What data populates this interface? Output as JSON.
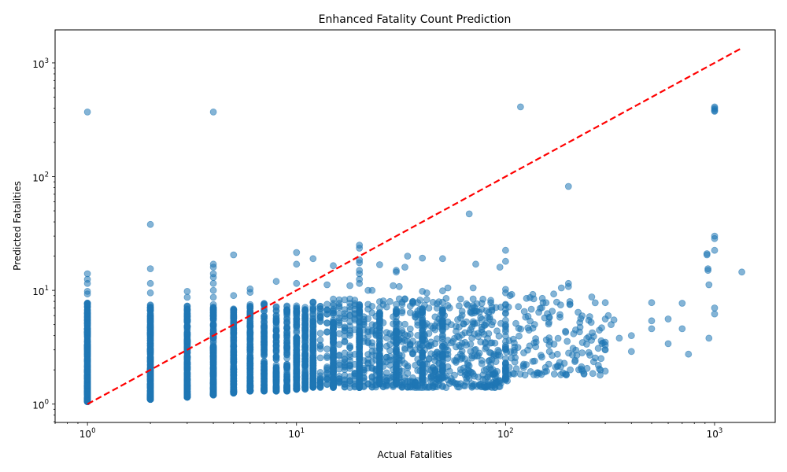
{
  "chart_data": {
    "type": "scatter",
    "title": "Enhanced Fatality Count Prediction",
    "xlabel": "Actual Fatalities",
    "ylabel": "Predicted Fatalities",
    "x_scale": "log",
    "y_scale": "log",
    "xlim": [
      0.7,
      1950
    ],
    "ylim": [
      0.69,
      1950
    ],
    "x_ticks": [
      {
        "value": 1,
        "base": "10",
        "exp": "0"
      },
      {
        "value": 10,
        "base": "10",
        "exp": "1"
      },
      {
        "value": 100,
        "base": "10",
        "exp": "2"
      },
      {
        "value": 1000,
        "base": "10",
        "exp": "3"
      }
    ],
    "y_ticks": [
      {
        "value": 1,
        "base": "10",
        "exp": "0"
      },
      {
        "value": 10,
        "base": "10",
        "exp": "1"
      },
      {
        "value": 100,
        "base": "10",
        "exp": "2"
      },
      {
        "value": 1000,
        "base": "10",
        "exp": "3"
      }
    ],
    "grid": false,
    "point_color": "#1f77b4",
    "point_alpha": 0.55,
    "reference_line": {
      "x": [
        1,
        1350
      ],
      "y": [
        1,
        1350
      ],
      "color": "#ff0000",
      "style": "dashed"
    },
    "bands": [
      {
        "x": 1,
        "ymin": 1.05,
        "ymax": 7.8,
        "n": 300
      },
      {
        "x": 2,
        "ymin": 1.1,
        "ymax": 7.5,
        "n": 260
      },
      {
        "x": 3,
        "ymin": 1.15,
        "ymax": 7.5,
        "n": 240
      },
      {
        "x": 4,
        "ymin": 1.2,
        "ymax": 7.6,
        "n": 200
      },
      {
        "x": 5,
        "ymin": 1.25,
        "ymax": 7.5,
        "n": 170
      },
      {
        "x": 6,
        "ymin": 1.3,
        "ymax": 7.6,
        "n": 150
      },
      {
        "x": 7,
        "ymin": 1.3,
        "ymax": 7.7,
        "n": 130
      },
      {
        "x": 8,
        "ymin": 1.3,
        "ymax": 7.5,
        "n": 110
      },
      {
        "x": 9,
        "ymin": 1.3,
        "ymax": 7.4,
        "n": 100
      },
      {
        "x": 10,
        "ymin": 1.35,
        "ymax": 7.6,
        "n": 130
      },
      {
        "x": 11,
        "ymin": 1.35,
        "ymax": 7.2,
        "n": 80
      },
      {
        "x": 12,
        "ymin": 1.4,
        "ymax": 7.0,
        "n": 90
      },
      {
        "x": 15,
        "ymin": 1.4,
        "ymax": 7.0,
        "n": 100
      },
      {
        "x": 20,
        "ymin": 1.4,
        "ymax": 7.5,
        "n": 110
      },
      {
        "x": 25,
        "ymin": 1.5,
        "ymax": 7.0,
        "n": 80
      },
      {
        "x": 30,
        "ymin": 1.5,
        "ymax": 7.0,
        "n": 80
      },
      {
        "x": 40,
        "ymin": 1.6,
        "ymax": 7.0,
        "n": 70
      },
      {
        "x": 50,
        "ymin": 1.7,
        "ymax": 7.0,
        "n": 60
      },
      {
        "x": 100,
        "ymin": 1.6,
        "ymax": 8.0,
        "n": 40
      }
    ],
    "cloud": {
      "xmin": 10,
      "xmax": 95,
      "ymin": 1.4,
      "ymax": 8.5,
      "n": 900
    },
    "sparse_cloud": {
      "xmin": 100,
      "xmax": 300,
      "ymin": 1.8,
      "ymax": 9.0,
      "n": 160
    },
    "outliers": [
      [
        1,
        370
      ],
      [
        4,
        370
      ],
      [
        118,
        410
      ],
      [
        2,
        38
      ],
      [
        1,
        14
      ],
      [
        1,
        12.5
      ],
      [
        1,
        11.5
      ],
      [
        1,
        9.8
      ],
      [
        1,
        9.3
      ],
      [
        2,
        15.5
      ],
      [
        2,
        11.5
      ],
      [
        2,
        9.5
      ],
      [
        3,
        9.8
      ],
      [
        3,
        8.7
      ],
      [
        4,
        17
      ],
      [
        4,
        16
      ],
      [
        4,
        14
      ],
      [
        4,
        13
      ],
      [
        4,
        11.5
      ],
      [
        4,
        10
      ],
      [
        4,
        8.7
      ],
      [
        5,
        20.5
      ],
      [
        5,
        9
      ],
      [
        6,
        10.3
      ],
      [
        6,
        9.6
      ],
      [
        8,
        12
      ],
      [
        10,
        21.5
      ],
      [
        10,
        17
      ],
      [
        10,
        11.5
      ],
      [
        12,
        19
      ],
      [
        14,
        11.2
      ],
      [
        15,
        16.5
      ],
      [
        18,
        11
      ],
      [
        20,
        25
      ],
      [
        20,
        23.5
      ],
      [
        20,
        18.5
      ],
      [
        20,
        17.5
      ],
      [
        20,
        15
      ],
      [
        20,
        14
      ],
      [
        20,
        12.5
      ],
      [
        20,
        11.5
      ],
      [
        22,
        10
      ],
      [
        23,
        10
      ],
      [
        25,
        16.8
      ],
      [
        29,
        11
      ],
      [
        30,
        15
      ],
      [
        30,
        14.5
      ],
      [
        31,
        10.8
      ],
      [
        33,
        16
      ],
      [
        34,
        20
      ],
      [
        40,
        19.2
      ],
      [
        40,
        9.8
      ],
      [
        42,
        9.5
      ],
      [
        50,
        19
      ],
      [
        50,
        9.9
      ],
      [
        53,
        10.5
      ],
      [
        67,
        47
      ],
      [
        70,
        10.5
      ],
      [
        72,
        17
      ],
      [
        94,
        16
      ],
      [
        100,
        22.5
      ],
      [
        100,
        18
      ],
      [
        100,
        10.2
      ],
      [
        100,
        9.5
      ],
      [
        102,
        1.6
      ],
      [
        105,
        9
      ],
      [
        107,
        9.2
      ],
      [
        126,
        8.5
      ],
      [
        135,
        9.2
      ],
      [
        150,
        8.5
      ],
      [
        170,
        9.3
      ],
      [
        185,
        10.5
      ],
      [
        200,
        82
      ],
      [
        200,
        11.5
      ],
      [
        200,
        10.8
      ],
      [
        300,
        7.8
      ],
      [
        300,
        1.95
      ],
      [
        300,
        3.5
      ],
      [
        300,
        3.3
      ],
      [
        300,
        3.0
      ],
      [
        300,
        5.6
      ],
      [
        310,
        6.0
      ],
      [
        320,
        5.0
      ],
      [
        330,
        5.5
      ],
      [
        350,
        3.8
      ],
      [
        400,
        4.0
      ],
      [
        400,
        2.9
      ],
      [
        500,
        7.8
      ],
      [
        500,
        5.4
      ],
      [
        500,
        4.6
      ],
      [
        600,
        5.6
      ],
      [
        600,
        3.4
      ],
      [
        700,
        7.7
      ],
      [
        700,
        4.6
      ],
      [
        750,
        2.75
      ],
      [
        920,
        21
      ],
      [
        920,
        20.5
      ],
      [
        930,
        15.5
      ],
      [
        930,
        15
      ],
      [
        940,
        11.2
      ],
      [
        940,
        3.8
      ],
      [
        1000,
        410
      ],
      [
        1000,
        400
      ],
      [
        1000,
        390
      ],
      [
        1000,
        380
      ],
      [
        1000,
        375
      ],
      [
        1000,
        30
      ],
      [
        1000,
        28.5
      ],
      [
        1000,
        22.5
      ],
      [
        1000,
        7
      ],
      [
        1000,
        6.2
      ],
      [
        1350,
        14.5
      ]
    ]
  }
}
